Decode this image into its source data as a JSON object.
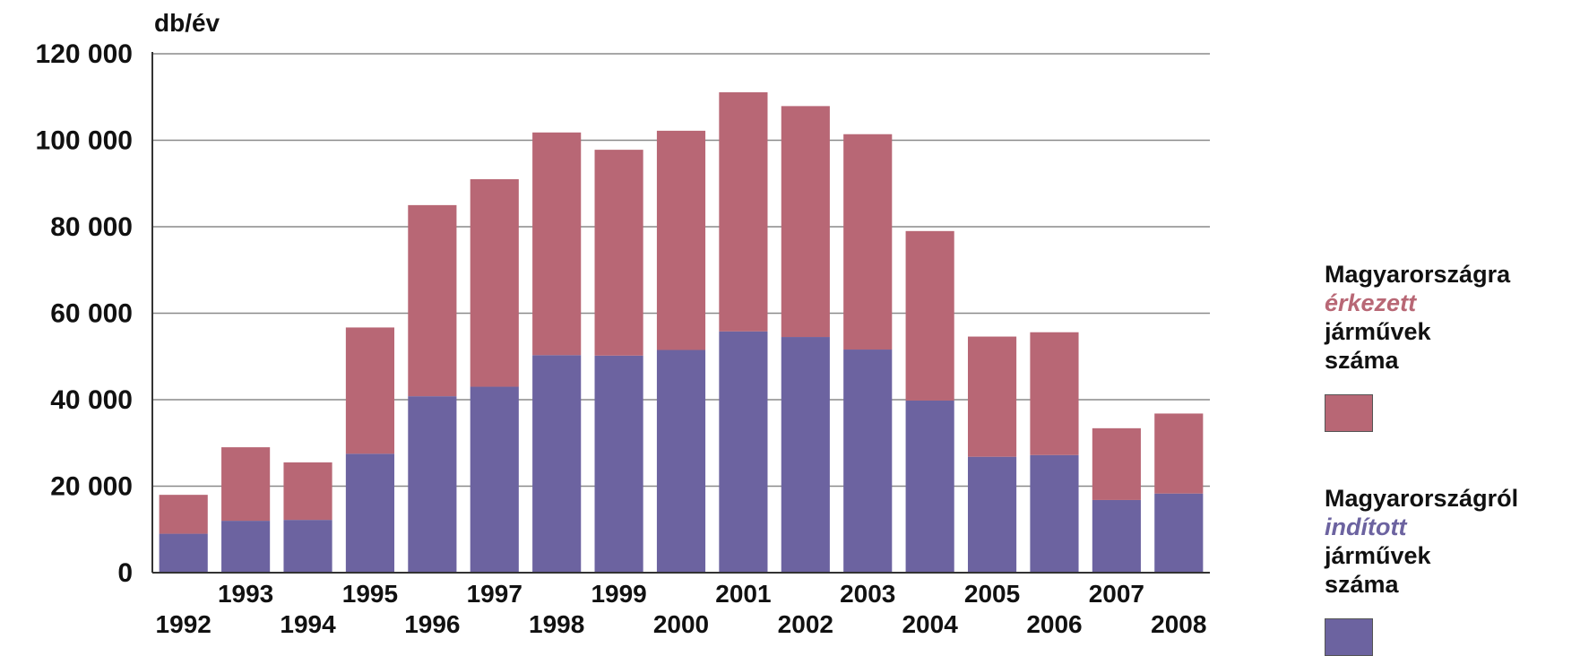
{
  "chart_data": {
    "type": "bar",
    "stacked": true,
    "ylabel": "db/év",
    "ylim": [
      0,
      120000
    ],
    "yticks": [
      0,
      20000,
      40000,
      60000,
      80000,
      100000,
      120000
    ],
    "ytick_labels": [
      "0",
      "20 000",
      "40 000",
      "60 000",
      "80 000",
      "100 000",
      "120 000"
    ],
    "grid": true,
    "legend_position": "right",
    "categories": [
      "1992",
      "1993",
      "1994",
      "1995",
      "1996",
      "1997",
      "1998",
      "1999",
      "2000",
      "2001",
      "2002",
      "2003",
      "2004",
      "2005",
      "2006",
      "2007",
      "2008"
    ],
    "series": [
      {
        "name": "Magyarországról indított járművek száma",
        "color": "#6c63a0",
        "values": [
          9000,
          12000,
          12200,
          27500,
          40800,
          43000,
          50300,
          50200,
          51500,
          55800,
          54500,
          51600,
          39800,
          26800,
          27200,
          16800,
          18300
        ]
      },
      {
        "name": "Magyarországra érkezett járművek száma",
        "color": "#b86775",
        "values": [
          9000,
          17000,
          13300,
          29200,
          44200,
          48000,
          51500,
          47600,
          50700,
          55300,
          53400,
          49800,
          39200,
          27800,
          28400,
          16600,
          18500
        ]
      }
    ]
  },
  "legend": {
    "arrived": {
      "line1": "Magyarországra",
      "line2": "érkezett",
      "line3": "járművek",
      "line4": "száma",
      "accent": "#b86775"
    },
    "departed": {
      "line1": "Magyarországról",
      "line2": "indított",
      "line3": "járművek",
      "line4": "száma",
      "accent": "#6c63a0"
    }
  }
}
